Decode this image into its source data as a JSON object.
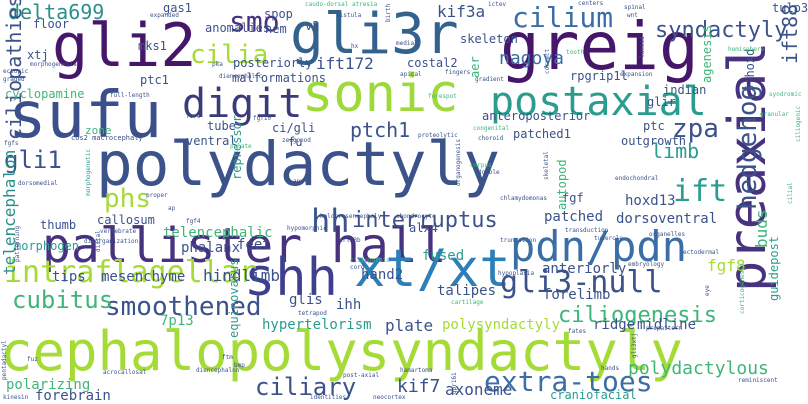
{
  "palette": {
    "dark_purple": "#46166b",
    "indigo": "#3b528b",
    "blue": "#3b6ea5",
    "teal": "#2a8f8a",
    "green": "#3fb57a",
    "lime": "#9ed93a",
    "yellow": "#e9e51a"
  },
  "words": [
    {
      "text": "polydactyly",
      "color": "#3b528b"
    },
    {
      "text": "cephalopolysyndactyly",
      "color": "#a5db36"
    },
    {
      "text": "pallister hall",
      "color": "#46327e"
    },
    {
      "text": "xt/xt",
      "color": "#2c7fb8"
    },
    {
      "text": "shh",
      "color": "#3f3f8f"
    },
    {
      "text": "greig",
      "color": "#46166b"
    },
    {
      "text": "gli2",
      "color": "#46166b"
    },
    {
      "text": "gli3r",
      "color": "#33638d"
    },
    {
      "text": "sufu",
      "color": "#3b4f8a"
    },
    {
      "text": "sonic",
      "color": "#9ed93a"
    },
    {
      "text": "preaxial",
      "color": "#46327e"
    },
    {
      "text": "postaxial",
      "color": "#2a9d8f"
    },
    {
      "text": "pdn/pdn",
      "color": "#3b6ea5"
    },
    {
      "text": "digit",
      "color": "#3b3b7a"
    },
    {
      "text": "intraflagellar",
      "color": "#a5db36"
    },
    {
      "text": "hedgehog",
      "color": "#3b528b"
    },
    {
      "text": "gli3-null",
      "color": "#3b528b"
    },
    {
      "text": "smoothened",
      "color": "#3b528b"
    },
    {
      "text": "extra-toes",
      "color": "#3b6ea5"
    },
    {
      "text": "cilium",
      "color": "#3b6ea5"
    },
    {
      "text": "cilia",
      "color": "#a5db36"
    },
    {
      "text": "smo",
      "color": "#46327e"
    },
    {
      "text": "gli1",
      "color": "#3b528b"
    },
    {
      "text": "hh",
      "color": "#3b528b"
    },
    {
      "text": "cubitus",
      "color": "#3fb57a"
    },
    {
      "text": "ciliary",
      "color": "#3b528b"
    },
    {
      "text": "ift",
      "color": "#2a9d8f"
    },
    {
      "text": "zpa",
      "color": "#3b528b"
    },
    {
      "text": "interruptus",
      "color": "#3b528b"
    },
    {
      "text": "ciliogenesis",
      "color": "#3fb57a"
    },
    {
      "text": "phs",
      "color": "#a5db36"
    },
    {
      "text": "ift88",
      "color": "#3b528b"
    },
    {
      "text": "delta699",
      "color": "#2a8f8a"
    },
    {
      "text": "ciliopathies",
      "color": "#3b528b"
    },
    {
      "text": "syndactyly",
      "color": "#3b528b"
    },
    {
      "text": "polydactylous",
      "color": "#3fb57a"
    },
    {
      "text": "ptch1",
      "color": "#3b528b"
    },
    {
      "text": "kif3a",
      "color": "#3b528b"
    },
    {
      "text": "ift172",
      "color": "#3b528b"
    },
    {
      "text": "nagoya",
      "color": "#3b6ea5"
    },
    {
      "text": "limb",
      "color": "#2a9d8f"
    },
    {
      "text": "telencephalon",
      "color": "#2a8f8a"
    },
    {
      "text": "kif7",
      "color": "#3b528b"
    },
    {
      "text": "axoneme",
      "color": "#3b528b"
    },
    {
      "text": "fgf8",
      "color": "#a5db36"
    },
    {
      "text": "buds",
      "color": "#3fb57a"
    },
    {
      "text": "hindlimb",
      "color": "#3b528b"
    },
    {
      "text": "polarizing",
      "color": "#3fb57a"
    },
    {
      "text": "forebrain",
      "color": "#3b528b"
    },
    {
      "text": "plate",
      "color": "#3b528b"
    },
    {
      "text": "polysyndactyly",
      "color": "#a5db36"
    },
    {
      "text": "ridge",
      "color": "#3b528b"
    },
    {
      "text": "midline",
      "color": "#3b528b"
    },
    {
      "text": "hypertelorism",
      "color": "#2a9d8f"
    },
    {
      "text": "dorsoventral",
      "color": "#3b528b"
    },
    {
      "text": "patched",
      "color": "#3b528b"
    },
    {
      "text": "forelimb",
      "color": "#3b528b"
    },
    {
      "text": "anteriorly",
      "color": "#3b528b"
    },
    {
      "text": "mesenchyme",
      "color": "#3b528b"
    },
    {
      "text": "tips",
      "color": "#3b528b"
    },
    {
      "text": "7p13",
      "color": "#3fb57a"
    },
    {
      "text": "equinovarus",
      "color": "#2a9d8f"
    },
    {
      "text": "ihh",
      "color": "#3b528b"
    },
    {
      "text": "glis",
      "color": "#3b528b"
    },
    {
      "text": "hand2",
      "color": "#3b528b"
    },
    {
      "text": "fused",
      "color": "#2a9d8f"
    },
    {
      "text": "talipes",
      "color": "#3b528b"
    },
    {
      "text": "phalanx",
      "color": "#3b528b"
    },
    {
      "text": "feet",
      "color": "#3b528b"
    },
    {
      "text": "morphogen",
      "color": "#2a9d8f"
    },
    {
      "text": "thumb",
      "color": "#3b528b"
    },
    {
      "text": "callosum",
      "color": "#3b528b"
    },
    {
      "text": "telencephalic",
      "color": "#3fb57a"
    },
    {
      "text": "repressor",
      "color": "#2a9d8f"
    },
    {
      "text": "alx4",
      "color": "#3b528b"
    },
    {
      "text": "fgf",
      "color": "#3b528b"
    },
    {
      "text": "autopod",
      "color": "#3fb57a"
    },
    {
      "text": "hoxd13",
      "color": "#3b528b"
    },
    {
      "text": "patched1",
      "color": "#3b528b"
    },
    {
      "text": "anteroposterior",
      "color": "#3b528b"
    },
    {
      "text": "outgrowth",
      "color": "#3b528b"
    },
    {
      "text": "ptc",
      "color": "#3b528b"
    },
    {
      "text": "glir",
      "color": "#3b528b"
    },
    {
      "text": "indian",
      "color": "#3b528b"
    },
    {
      "text": "rpgrip1l",
      "color": "#3b528b"
    },
    {
      "text": "5'hoxd",
      "color": "#3b528b"
    },
    {
      "text": "agenesis",
      "color": "#3fb57a"
    },
    {
      "text": "guidepost",
      "color": "#2a9d8f"
    },
    {
      "text": "tulp3",
      "color": "#3b528b"
    },
    {
      "text": "ptc1",
      "color": "#3b528b"
    },
    {
      "text": "cyclopamine",
      "color": "#3fb57a"
    },
    {
      "text": "tube",
      "color": "#3b528b"
    },
    {
      "text": "ventral",
      "color": "#3b528b"
    },
    {
      "text": "ci/gli",
      "color": "#3b528b"
    },
    {
      "text": "fu",
      "color": "#3b528b"
    },
    {
      "text": "malformations",
      "color": "#3b528b"
    },
    {
      "text": "posteriorly",
      "color": "#3b528b"
    },
    {
      "text": "anomalies",
      "color": "#3b528b"
    },
    {
      "text": "hem",
      "color": "#3b528b"
    },
    {
      "text": "spop",
      "color": "#3b528b"
    },
    {
      "text": "v3",
      "color": "#3b528b"
    },
    {
      "text": "costal2",
      "color": "#3b528b"
    },
    {
      "text": "skeleton",
      "color": "#3b528b"
    },
    {
      "text": "aer",
      "color": "#3fb57a"
    },
    {
      "text": "gas1",
      "color": "#3b528b"
    },
    {
      "text": "mks1",
      "color": "#3b528b"
    },
    {
      "text": "floor",
      "color": "#3b528b"
    },
    {
      "text": "xtj",
      "color": "#3b528b"
    },
    {
      "text": "cos2 macrocephaly",
      "color": "#3b528b"
    },
    {
      "text": "zone",
      "color": "#3fb57a"
    },
    {
      "text": "zeugopod",
      "color": "#3b528b"
    },
    {
      "text": "proteolytic",
      "color": "#3b528b"
    },
    {
      "text": "chlamydomonas",
      "color": "#3b528b"
    },
    {
      "text": "holoprosencephaly",
      "color": "#3b528b"
    },
    {
      "text": "chondrocyte",
      "color": "#3b528b"
    },
    {
      "text": "hypomorphic",
      "color": "#3b528b"
    },
    {
      "text": "vertebrate",
      "color": "#3b528b"
    },
    {
      "text": "disorganization",
      "color": "#3b528b"
    },
    {
      "text": "arl13b",
      "color": "#3b528b"
    },
    {
      "text": "organelles",
      "color": "#3b528b"
    },
    {
      "text": "tubercle",
      "color": "#3b528b"
    },
    {
      "text": "truncation",
      "color": "#3b528b"
    },
    {
      "text": "transduction",
      "color": "#3b528b"
    },
    {
      "text": "embryology",
      "color": "#3b528b"
    },
    {
      "text": "ectodermal",
      "color": "#3b528b"
    },
    {
      "text": "hypoplasia",
      "color": "#3b528b"
    },
    {
      "text": "ciliopathic",
      "color": "#3fb57a"
    },
    {
      "text": "cord",
      "color": "#3b528b"
    },
    {
      "text": "tetrapod",
      "color": "#3b528b"
    },
    {
      "text": "cartilage",
      "color": "#3fb57a"
    },
    {
      "text": "fates",
      "color": "#3b528b"
    },
    {
      "text": "prepattern",
      "color": "#3b528b"
    },
    {
      "text": "pentadactyl",
      "color": "#3b528b"
    },
    {
      "text": "fuz",
      "color": "#3b528b"
    },
    {
      "text": "ftm",
      "color": "#3b528b"
    },
    {
      "text": "bmp",
      "color": "#3b528b"
    },
    {
      "text": "acrocallosal",
      "color": "#3b528b"
    },
    {
      "text": "diencephalon",
      "color": "#3b528b"
    },
    {
      "text": "hamartoma",
      "color": "#3b528b"
    },
    {
      "text": "post-axial",
      "color": "#3b528b"
    },
    {
      "text": "gli3xtj",
      "color": "#3b528b"
    },
    {
      "text": "gpr161",
      "color": "#3b528b"
    },
    {
      "text": "hands",
      "color": "#3b528b"
    },
    {
      "text": "reminiscent",
      "color": "#3b528b"
    },
    {
      "text": "kinesin",
      "color": "#3b528b"
    },
    {
      "text": "identities",
      "color": "#3b528b"
    },
    {
      "text": "neocortex",
      "color": "#3b528b"
    },
    {
      "text": "craniofacial",
      "color": "#2a9d8f"
    },
    {
      "text": "expanded",
      "color": "#3b528b"
    },
    {
      "text": "morphogenesis",
      "color": "#3b528b"
    },
    {
      "text": "ectopic",
      "color": "#3b528b"
    },
    {
      "text": "graded",
      "color": "#3b528b"
    },
    {
      "text": "diencephalic",
      "color": "#3b528b"
    },
    {
      "text": "full-length",
      "color": "#3b528b"
    },
    {
      "text": "pka",
      "color": "#3b528b"
    },
    {
      "text": "apical",
      "color": "#3b528b"
    },
    {
      "text": "fingers",
      "color": "#3b528b"
    },
    {
      "text": "gradient",
      "color": "#3b528b"
    },
    {
      "text": "correct",
      "color": "#3b528b"
    },
    {
      "text": "expansion",
      "color": "#3b528b"
    },
    {
      "text": "tooth",
      "color": "#3fb57a"
    },
    {
      "text": "hemisphere",
      "color": "#3fb57a"
    },
    {
      "text": "medial",
      "color": "#3b528b"
    },
    {
      "text": "fistula",
      "color": "#3b528b"
    },
    {
      "text": "caudo-dorsal atresia",
      "color": "#3fb57a"
    },
    {
      "text": "birth",
      "color": "#3b528b"
    },
    {
      "text": "ictev",
      "color": "#3b528b"
    },
    {
      "text": "centers",
      "color": "#3b528b"
    },
    {
      "text": "spinal",
      "color": "#3b528b"
    },
    {
      "text": "wnt",
      "color": "#3b528b"
    },
    {
      "text": "luxoid",
      "color": "#3b528b"
    },
    {
      "text": "forespot",
      "color": "#3fb57a"
    },
    {
      "text": "congenital",
      "color": "#3fb57a"
    },
    {
      "text": "choroid",
      "color": "#3b528b"
    },
    {
      "text": "endochondral",
      "color": "#3b528b"
    },
    {
      "text": "corpus",
      "color": "#3fb57a"
    },
    {
      "text": "double",
      "color": "#3b528b"
    },
    {
      "text": "organogenesis",
      "color": "#3b528b"
    },
    {
      "text": "skeletal",
      "color": "#3b528b"
    },
    {
      "text": "fgf10",
      "color": "#3b528b"
    },
    {
      "text": "fgf4",
      "color": "#3b528b"
    },
    {
      "text": "fgfs",
      "color": "#3b528b"
    },
    {
      "text": "fore",
      "color": "#3b528b"
    },
    {
      "text": "proper",
      "color": "#3b528b"
    },
    {
      "text": "palate",
      "color": "#3fb57a"
    },
    {
      "text": "dorsomedial",
      "color": "#3b528b"
    },
    {
      "text": "anal",
      "color": "#3b528b"
    },
    {
      "text": "granular",
      "color": "#3fb57a"
    },
    {
      "text": "ciliogenic",
      "color": "#3fb57a"
    },
    {
      "text": "syndromic",
      "color": "#3fb57a"
    },
    {
      "text": "cilial",
      "color": "#3fb57a"
    },
    {
      "text": "morphogenetic",
      "color": "#2a9d8f"
    },
    {
      "text": "patterning",
      "color": "#3b528b"
    },
    {
      "text": "distal",
      "color": "#3b528b"
    },
    {
      "text": "eye",
      "color": "#3b528b"
    },
    {
      "text": "corticogenesis",
      "color": "#3fb57a"
    },
    {
      "text": "hx",
      "color": "#3b528b"
    },
    {
      "text": "ap",
      "color": "#3b528b"
    }
  ]
}
